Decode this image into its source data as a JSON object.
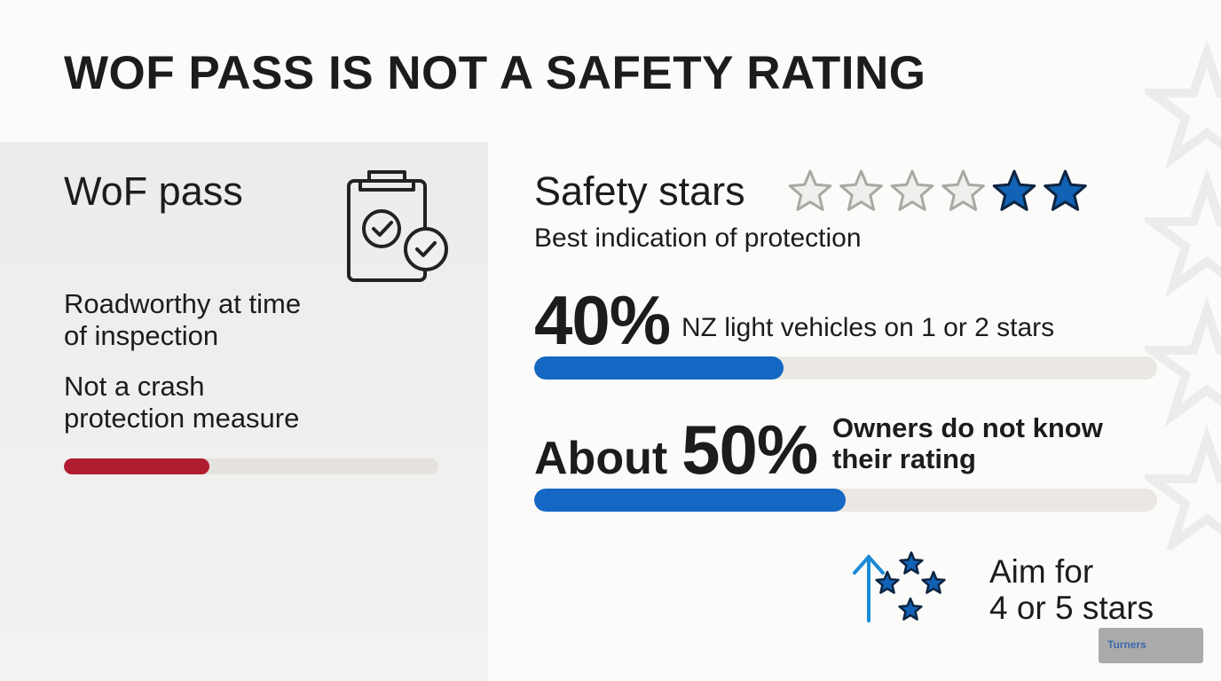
{
  "title": "WOF PASS IS NOT A SAFETY RATING",
  "left_panel": {
    "heading": "WoF pass",
    "points": [
      [
        "Roadworthy at time",
        "of inspection"
      ],
      [
        "Not a crash",
        "protection measure"
      ]
    ]
  },
  "right_panel": {
    "heading": "Safety stars",
    "subheading": "Best indication of protection",
    "stats": [
      {
        "value": 40,
        "value_label": "40%",
        "lines": [
          "NZ light vehicles on 1 or 2 stars"
        ]
      },
      {
        "prefix": "About",
        "value": 50,
        "value_label": "50%",
        "lines": [
          "Owners do not know",
          "their rating"
        ]
      }
    ],
    "aim": [
      "Aim for",
      "4 or 5 stars"
    ]
  },
  "logo": "Turners"
}
